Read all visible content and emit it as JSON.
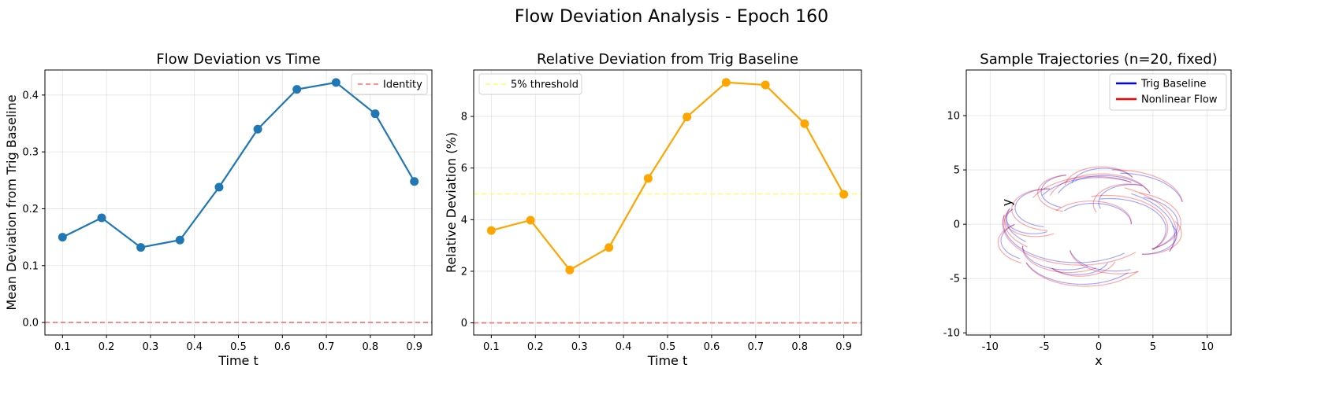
{
  "suptitle": "Flow Deviation Analysis - Epoch 160",
  "colors": {
    "blue": "#1f77b4",
    "orange": "#ffa500",
    "red_ref": "#ff6b6b",
    "yellow_ref": "#ffff66",
    "trig": "#0000ff",
    "nonlinear": "#ff0000",
    "grid": "#b0b0b0"
  },
  "chart_data": [
    {
      "type": "line",
      "title": "Flow Deviation vs Time",
      "xlabel": "Time t",
      "ylabel": "Mean Deviation from Trig Baseline",
      "xlim": [
        0.06,
        0.94
      ],
      "ylim": [
        -0.022,
        0.444
      ],
      "xticks": [
        0.1,
        0.2,
        0.3,
        0.4,
        0.5,
        0.6,
        0.7,
        0.8,
        0.9
      ],
      "yticks": [
        0.0,
        0.1,
        0.2,
        0.3,
        0.4
      ],
      "grid": true,
      "legend": {
        "placement": "top-right",
        "entries": [
          "Identity"
        ]
      },
      "reference_line": {
        "y": 0.0,
        "label": "Identity",
        "style": "dashed",
        "color": "#ff6b6b"
      },
      "series": [
        {
          "color": "#1f77b4",
          "x": [
            0.1,
            0.189,
            0.278,
            0.367,
            0.456,
            0.544,
            0.633,
            0.722,
            0.811,
            0.9
          ],
          "y": [
            0.15,
            0.184,
            0.132,
            0.145,
            0.238,
            0.34,
            0.41,
            0.422,
            0.367,
            0.248
          ]
        }
      ]
    },
    {
      "type": "line",
      "title": "Relative Deviation from Trig Baseline",
      "xlabel": "Time t",
      "ylabel": "Relative Deviation (%)",
      "xlim": [
        0.06,
        0.94
      ],
      "ylim": [
        -0.47,
        9.8
      ],
      "xticks": [
        0.1,
        0.2,
        0.3,
        0.4,
        0.5,
        0.6,
        0.7,
        0.8,
        0.9
      ],
      "yticks": [
        0,
        2,
        4,
        6,
        8
      ],
      "grid": true,
      "legend": {
        "placement": "top-left",
        "entries": [
          "5% threshold"
        ]
      },
      "threshold_line": {
        "y": 5,
        "label": "5% threshold",
        "style": "dashed",
        "color": "#ffff66"
      },
      "zero_line": {
        "y": 0,
        "style": "dashed",
        "color": "#ff6b6b"
      },
      "series": [
        {
          "color": "#ffa500",
          "x": [
            0.1,
            0.189,
            0.278,
            0.367,
            0.456,
            0.544,
            0.633,
            0.722,
            0.811,
            0.9
          ],
          "y": [
            3.58,
            3.98,
            2.05,
            2.92,
            5.6,
            7.98,
            9.32,
            9.22,
            7.72,
            4.98
          ]
        }
      ]
    },
    {
      "type": "line",
      "title": "Sample Trajectories (n=20, fixed)",
      "xlabel": "x",
      "ylabel": "y",
      "xlim": [
        -12.2,
        12.2
      ],
      "ylim": [
        -10.2,
        14.2
      ],
      "xticks": [
        -10,
        -5,
        0,
        5,
        10
      ],
      "yticks": [
        -10,
        -5,
        0,
        5,
        10
      ],
      "grid": true,
      "legend": {
        "placement": "top-right",
        "entries": [
          "Trig Baseline",
          "Nonlinear Flow"
        ]
      },
      "trajectories": [
        {
          "cx": -2.0,
          "cy": 0.2,
          "r": 6.8,
          "t0": 170,
          "t1": 310
        },
        {
          "cx": 1.0,
          "cy": -0.5,
          "r": 5.2,
          "t0": -40,
          "t1": 100
        },
        {
          "cx": -4.5,
          "cy": 1.5,
          "r": 3.2,
          "t0": 90,
          "t1": 260
        },
        {
          "cx": 0.5,
          "cy": 2.0,
          "r": 4.5,
          "t0": 20,
          "t1": 160
        },
        {
          "cx": -1.0,
          "cy": -1.0,
          "r": 8.0,
          "t0": -20,
          "t1": 60
        },
        {
          "cx": -3.0,
          "cy": -2.0,
          "r": 4.0,
          "t0": 180,
          "t1": 300
        },
        {
          "cx": 2.5,
          "cy": 0.0,
          "r": 4.8,
          "t0": -60,
          "t1": 70
        },
        {
          "cx": -5.5,
          "cy": -1.5,
          "r": 3.5,
          "t0": 130,
          "t1": 240
        },
        {
          "cx": 0.0,
          "cy": 1.0,
          "r": 6.0,
          "t0": 60,
          "t1": 150
        },
        {
          "cx": -2.5,
          "cy": 3.0,
          "r": 2.8,
          "t0": 100,
          "t1": 250
        },
        {
          "cx": 3.0,
          "cy": 2.0,
          "r": 3.0,
          "t0": 70,
          "t1": 200
        },
        {
          "cx": -1.5,
          "cy": -2.5,
          "r": 5.5,
          "t0": 200,
          "t1": 320
        },
        {
          "cx": 4.0,
          "cy": -1.0,
          "r": 3.2,
          "t0": -90,
          "t1": 30
        },
        {
          "cx": -3.5,
          "cy": 0.5,
          "r": 5.0,
          "t0": 160,
          "t1": 230
        },
        {
          "cx": 1.5,
          "cy": -2.0,
          "r": 4.2,
          "t0": 190,
          "t1": 290
        },
        {
          "cx": -0.5,
          "cy": 0.0,
          "r": 3.5,
          "t0": 0,
          "t1": 140
        },
        {
          "cx": -6.0,
          "cy": 0.5,
          "r": 2.5,
          "t0": 140,
          "t1": 300
        },
        {
          "cx": 2.0,
          "cy": 1.5,
          "r": 5.8,
          "t0": 10,
          "t1": 90
        },
        {
          "cx": -2.0,
          "cy": -3.0,
          "r": 3.0,
          "t0": 220,
          "t1": 340
        },
        {
          "cx": 0.5,
          "cy": 3.5,
          "r": 3.0,
          "t0": 30,
          "t1": 170
        }
      ]
    }
  ]
}
